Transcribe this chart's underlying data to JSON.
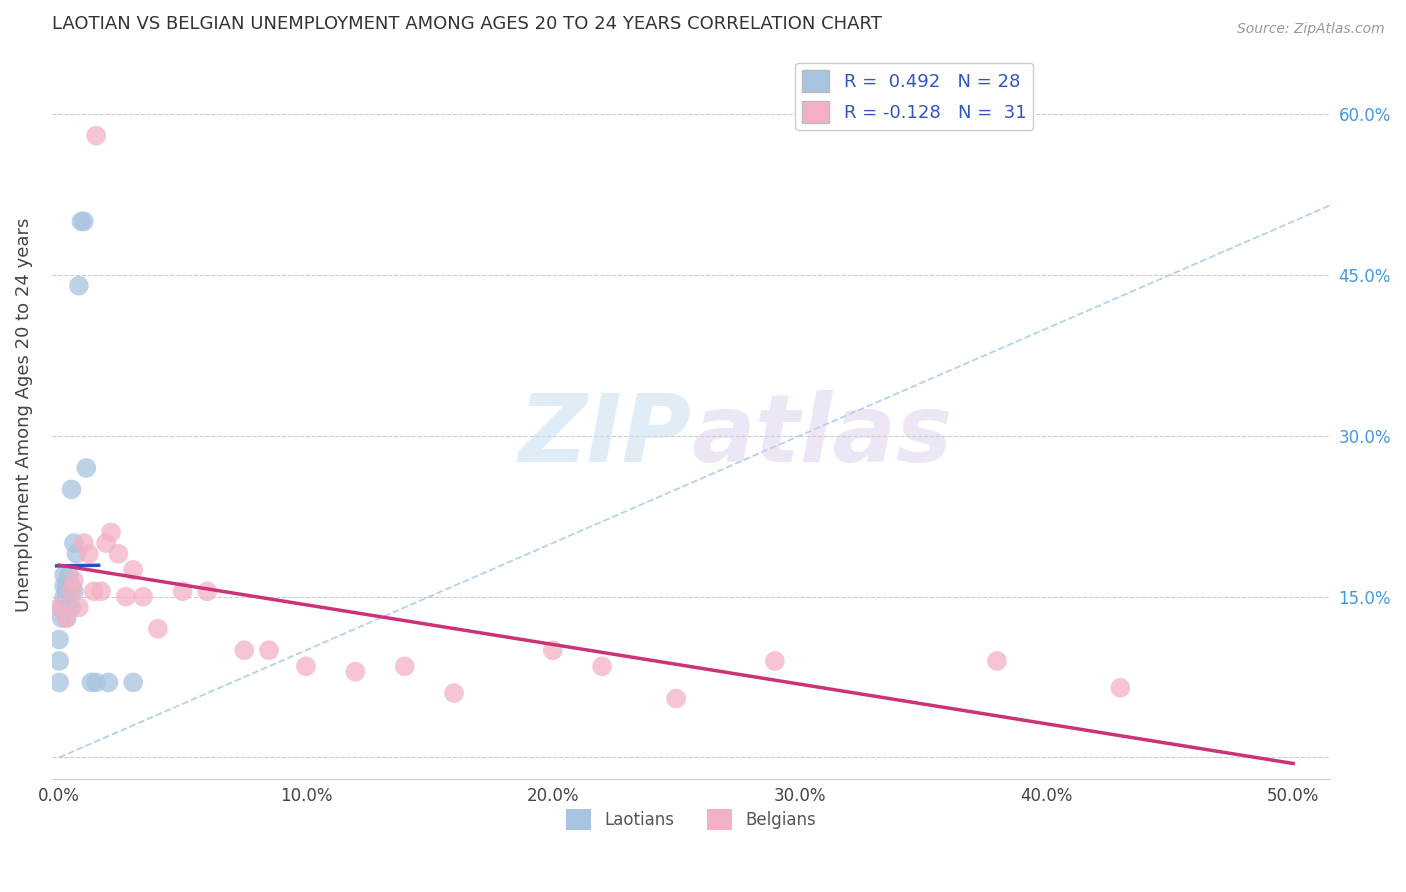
{
  "title": "LAOTIAN VS BELGIAN UNEMPLOYMENT AMONG AGES 20 TO 24 YEARS CORRELATION CHART",
  "source": "Source: ZipAtlas.com",
  "ylabel": "Unemployment Among Ages 20 to 24 years",
  "watermark_zip": "ZIP",
  "watermark_atlas": "atlas",
  "xlim": [
    -0.003,
    0.515
  ],
  "ylim": [
    -0.02,
    0.66
  ],
  "xticks": [
    0.0,
    0.1,
    0.2,
    0.3,
    0.4,
    0.5
  ],
  "xticklabels": [
    "0.0%",
    "10.0%",
    "20.0%",
    "30.0%",
    "40.0%",
    "50.0%"
  ],
  "yticks": [
    0.0,
    0.15,
    0.3,
    0.45,
    0.6
  ],
  "ytick_labels_right": [
    "",
    "15.0%",
    "30.0%",
    "45.0%",
    "60.0%"
  ],
  "grid_color": "#cccccc",
  "background_color": "#ffffff",
  "laotian_color": "#a8c4e0",
  "laotian_edge_color": "#6699cc",
  "laotian_line_color": "#2255bb",
  "belgian_color": "#f4b0c4",
  "belgian_edge_color": "#dd88aa",
  "belgian_line_color": "#cc3377",
  "laotian_R": 0.492,
  "laotian_N": 28,
  "belgian_R": -0.128,
  "belgian_N": 31,
  "diagonal_color": "#aaccee",
  "laotian_x": [
    0.0,
    0.0,
    0.0,
    0.001,
    0.001,
    0.002,
    0.002,
    0.002,
    0.003,
    0.003,
    0.003,
    0.004,
    0.004,
    0.004,
    0.005,
    0.005,
    0.005,
    0.006,
    0.006,
    0.007,
    0.008,
    0.009,
    0.01,
    0.011,
    0.013,
    0.015,
    0.02,
    0.03
  ],
  "laotian_y": [
    0.07,
    0.09,
    0.11,
    0.13,
    0.14,
    0.15,
    0.16,
    0.17,
    0.13,
    0.15,
    0.16,
    0.14,
    0.155,
    0.17,
    0.14,
    0.16,
    0.25,
    0.155,
    0.2,
    0.19,
    0.44,
    0.5,
    0.5,
    0.27,
    0.07,
    0.07,
    0.07,
    0.07
  ],
  "belgian_x": [
    0.0,
    0.003,
    0.005,
    0.006,
    0.008,
    0.01,
    0.012,
    0.014,
    0.015,
    0.017,
    0.019,
    0.021,
    0.024,
    0.027,
    0.03,
    0.034,
    0.04,
    0.05,
    0.06,
    0.075,
    0.085,
    0.1,
    0.12,
    0.14,
    0.16,
    0.2,
    0.22,
    0.25,
    0.29,
    0.38,
    0.43
  ],
  "belgian_y": [
    0.14,
    0.13,
    0.155,
    0.165,
    0.14,
    0.2,
    0.19,
    0.155,
    0.58,
    0.155,
    0.2,
    0.21,
    0.19,
    0.15,
    0.175,
    0.15,
    0.12,
    0.155,
    0.155,
    0.1,
    0.1,
    0.085,
    0.08,
    0.085,
    0.06,
    0.1,
    0.085,
    0.055,
    0.09,
    0.09,
    0.065
  ]
}
